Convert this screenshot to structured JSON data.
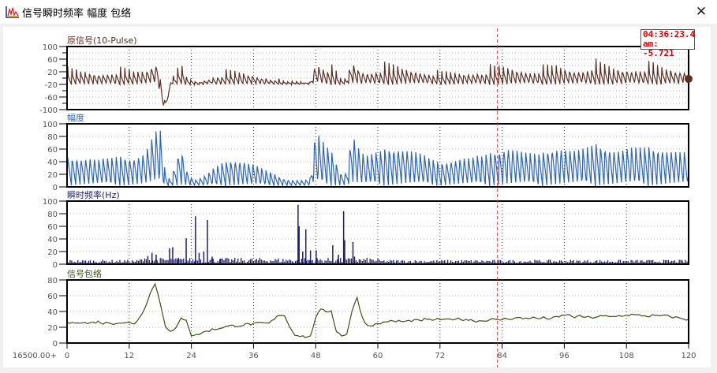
{
  "window": {
    "title": "信号瞬时频率 幅度 包络",
    "close_icon": "close-icon",
    "app_icon": "chart-icon"
  },
  "cursor": {
    "time": "04:36:23.4",
    "value_text": "am: -5.721",
    "x": 83.1,
    "color": "#e03030"
  },
  "x_axis": {
    "origin_label": "16500.00+",
    "ticks": [
      0,
      12,
      24,
      36,
      48,
      60,
      72,
      84,
      96,
      108,
      120
    ],
    "range": [
      0,
      120
    ]
  },
  "chart_data": [
    {
      "type": "line",
      "title": "原信号(10-Pulse)",
      "color": "#5b2e22",
      "ylim": [
        -100,
        100
      ],
      "yticks": [
        100,
        60,
        20,
        -20,
        -60,
        -100
      ],
      "grid": true
    },
    {
      "type": "line",
      "title": "幅度",
      "color": "#2a64c0",
      "ylim": [
        0,
        100
      ],
      "yticks": [
        100,
        80,
        60,
        40,
        20,
        0
      ],
      "grid": true,
      "x_step": 1,
      "values": [
        50,
        48,
        50,
        49,
        51,
        50,
        48,
        50,
        49,
        50,
        51,
        50,
        49,
        50,
        55,
        60,
        80,
        100,
        100,
        20,
        10,
        40,
        70,
        30,
        15,
        10,
        15,
        20,
        30,
        35,
        40,
        42,
        45,
        45,
        45,
        42,
        40,
        35,
        30,
        25,
        20,
        15,
        12,
        10,
        10,
        10,
        10,
        15,
        100,
        85,
        70,
        60,
        40,
        20,
        25,
        100,
        75,
        60,
        55,
        58,
        60,
        62,
        65,
        66,
        68,
        67,
        66,
        64,
        60,
        55,
        48,
        44,
        40,
        42,
        45,
        48,
        50,
        52,
        50,
        55,
        52,
        55,
        58,
        60,
        65,
        70,
        68,
        66,
        62,
        60,
        58,
        55,
        58,
        62,
        68,
        70,
        68,
        66,
        65,
        66,
        68,
        70,
        72,
        70,
        68,
        66,
        65,
        66,
        68,
        70,
        69,
        68,
        67,
        66,
        65,
        66,
        65,
        64,
        63,
        62,
        62
      ]
    },
    {
      "type": "bar",
      "title": "瞬时频率(Hz)",
      "color": "#1b1f6e",
      "ylim": [
        0,
        100
      ],
      "yticks": [
        100,
        80,
        60,
        40,
        20,
        0
      ],
      "grid": true,
      "spikes": [
        [
          15.6,
          13
        ],
        [
          16.4,
          18
        ],
        [
          17.2,
          15
        ],
        [
          19.8,
          25
        ],
        [
          20.4,
          27
        ],
        [
          21.5,
          10
        ],
        [
          23.0,
          41
        ],
        [
          24.8,
          76
        ],
        [
          25.5,
          18
        ],
        [
          26.4,
          20
        ],
        [
          27.1,
          70
        ],
        [
          28.0,
          12
        ],
        [
          29.5,
          8
        ],
        [
          44.6,
          94
        ],
        [
          44.8,
          60
        ],
        [
          45.5,
          20
        ],
        [
          46.1,
          55
        ],
        [
          47.0,
          22
        ],
        [
          48.1,
          22
        ],
        [
          51.3,
          30
        ],
        [
          52.4,
          15
        ],
        [
          53.4,
          84
        ],
        [
          53.6,
          38
        ],
        [
          55.2,
          35
        ],
        [
          55.5,
          12
        ]
      ]
    },
    {
      "type": "line",
      "title": "信号包络",
      "color": "#3b5418",
      "ylim": [
        0,
        80
      ],
      "yticks": [
        80,
        60,
        40,
        20,
        0
      ],
      "grid": true,
      "x_step": 1,
      "values": [
        26,
        25,
        27,
        26,
        25,
        26,
        27,
        25,
        26,
        25,
        26,
        25,
        26,
        25,
        32,
        45,
        62,
        76,
        50,
        22,
        14,
        18,
        31,
        30,
        10,
        10,
        13,
        15,
        17,
        18,
        20,
        21,
        22,
        22,
        23,
        24,
        24,
        25,
        25,
        25,
        30,
        36,
        35,
        20,
        11,
        9,
        8,
        8,
        33,
        42,
        40,
        41,
        15,
        9,
        12,
        40,
        58,
        32,
        22,
        23,
        24,
        26,
        28,
        27,
        28,
        27,
        28,
        29,
        28,
        30,
        29,
        30,
        30,
        29,
        30,
        31,
        30,
        30,
        29,
        28,
        28,
        29,
        30,
        29,
        30,
        31,
        31,
        32,
        31,
        32,
        32,
        31,
        32,
        31,
        32,
        33,
        36,
        35,
        33,
        34,
        33,
        32,
        33,
        34,
        34,
        33,
        34,
        35,
        35,
        36,
        35,
        35,
        34,
        35,
        34,
        35,
        34,
        33,
        32,
        31,
        29
      ]
    }
  ]
}
